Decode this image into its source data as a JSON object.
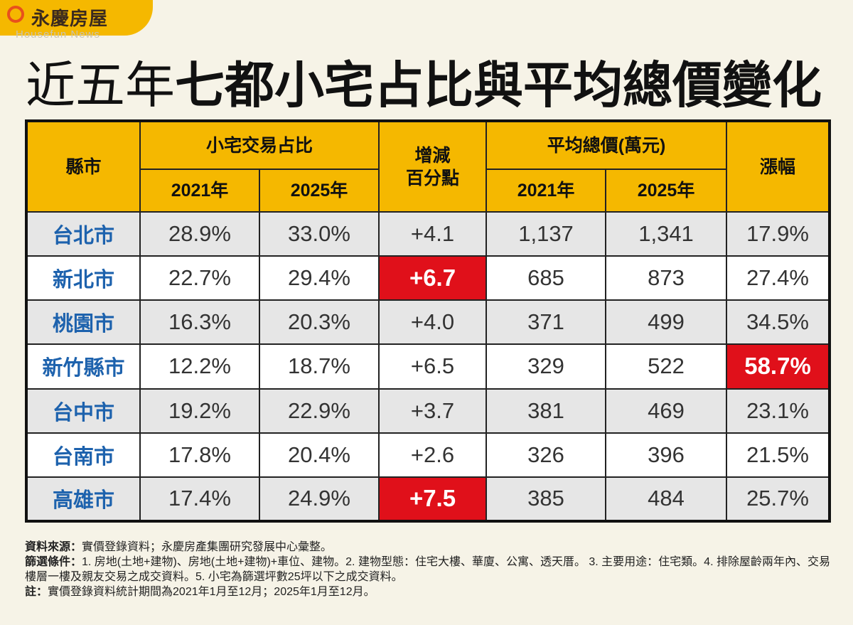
{
  "header": {
    "logo": "永慶房屋",
    "logo_sub": "Housefun News",
    "title_light": "近五年",
    "title_bold": "七都小宅占比與平均總價變化"
  },
  "table": {
    "head": {
      "city": "縣市",
      "share": "小宅交易占比",
      "change": [
        "增減",
        "百分點"
      ],
      "price": "平均總價(萬元)",
      "growth": "漲幅",
      "share_years": [
        "2021年",
        "2025年"
      ],
      "price_years": [
        "2021年",
        "2025年"
      ]
    },
    "rows": [
      [
        "台北市",
        "28.9%",
        "33.0%",
        "+4.1",
        "1,137",
        "1,341",
        "17.9%"
      ],
      [
        "新北市",
        "22.7%",
        "29.4%",
        {
          "text": "+6.7",
          "highlight": true
        },
        "685",
        "873",
        "27.4%"
      ],
      [
        "桃園市",
        "16.3%",
        "20.3%",
        "+4.0",
        "371",
        "499",
        "34.5%"
      ],
      [
        "新竹縣市",
        "12.2%",
        "18.7%",
        "+6.5",
        "329",
        "522",
        {
          "text": "58.7%",
          "highlight": true
        }
      ],
      [
        "台中市",
        "19.2%",
        "22.9%",
        "+3.7",
        "381",
        "469",
        "23.1%"
      ],
      [
        "台南市",
        "17.8%",
        "20.4%",
        "+2.6",
        "326",
        "396",
        "21.5%"
      ],
      [
        "高雄市",
        "17.4%",
        "24.9%",
        {
          "text": "+7.5",
          "highlight": true
        },
        "385",
        "484",
        "25.7%"
      ]
    ]
  },
  "notes": [
    {
      "label": "資料來源：",
      "text": "實價登錄資料；永慶房產集團研究發展中心彙整。"
    },
    {
      "label": "篩選條件：",
      "text": "1. 房地(土地+建物)、房地(土地+建物)+車位、建物。2. 建物型態：住宅大樓、華廈、公寓、透天厝。 3. 主要用途：住宅類。4. 排除屋齡兩年內、交易樓層一樓及親友交易之成交資料。5. 小宅為篩選坪數25坪以下之成交資料。"
    },
    {
      "label": "註：",
      "text": "實價登錄資料統計期間為2021年1月至12月；2025年1月至12月。"
    }
  ]
}
